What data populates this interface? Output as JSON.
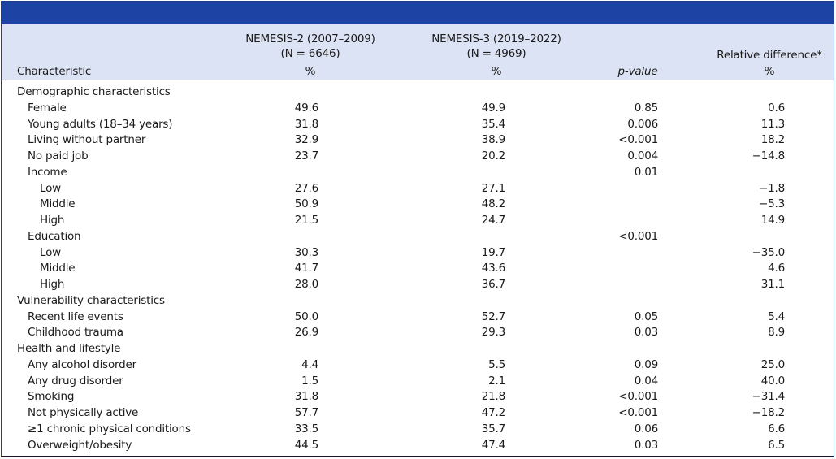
{
  "header": {
    "col_characteristic": "Characteristic",
    "col_n2_title": "NEMESIS-2 (2007–2009)",
    "col_n2_n": "(N = 6646)",
    "col_n2_unit": "%",
    "col_n3_title": "NEMESIS-3 (2019–2022)",
    "col_n3_n": "(N = 4969)",
    "col_n3_unit": "%",
    "col_p": "p-value",
    "col_rel": "Relative difference*",
    "col_rel_unit": "%"
  },
  "rows": [
    {
      "label": "Demographic characteristics",
      "indent": 0,
      "n2": "",
      "n3": "",
      "p": "",
      "rel": ""
    },
    {
      "label": "Female",
      "indent": 1,
      "n2": "49.6",
      "n3": "49.9",
      "p": "0.85",
      "rel": "0.6"
    },
    {
      "label": "Young adults (18–34 years)",
      "indent": 1,
      "n2": "31.8",
      "n3": "35.4",
      "p": "0.006",
      "rel": "11.3"
    },
    {
      "label": "Living without partner",
      "indent": 1,
      "n2": "32.9",
      "n3": "38.9",
      "p": "<0.001",
      "rel": "18.2"
    },
    {
      "label": "No paid job",
      "indent": 1,
      "n2": "23.7",
      "n3": "20.2",
      "p": "0.004",
      "rel": "−14.8"
    },
    {
      "label": "Income",
      "indent": 1,
      "n2": "",
      "n3": "",
      "p": "0.01",
      "rel": ""
    },
    {
      "label": "Low",
      "indent": 2,
      "n2": "27.6",
      "n3": "27.1",
      "p": "",
      "rel": "−1.8"
    },
    {
      "label": "Middle",
      "indent": 2,
      "n2": "50.9",
      "n3": "48.2",
      "p": "",
      "rel": "−5.3"
    },
    {
      "label": "High",
      "indent": 2,
      "n2": "21.5",
      "n3": "24.7",
      "p": "",
      "rel": "14.9"
    },
    {
      "label": "Education",
      "indent": 1,
      "n2": "",
      "n3": "",
      "p": "<0.001",
      "rel": ""
    },
    {
      "label": "Low",
      "indent": 2,
      "n2": "30.3",
      "n3": "19.7",
      "p": "",
      "rel": "−35.0"
    },
    {
      "label": "Middle",
      "indent": 2,
      "n2": "41.7",
      "n3": "43.6",
      "p": "",
      "rel": "4.6"
    },
    {
      "label": "High",
      "indent": 2,
      "n2": "28.0",
      "n3": "36.7",
      "p": "",
      "rel": "31.1"
    },
    {
      "label": "Vulnerability characteristics",
      "indent": 0,
      "n2": "",
      "n3": "",
      "p": "",
      "rel": ""
    },
    {
      "label": "Recent life events",
      "indent": 1,
      "n2": "50.0",
      "n3": "52.7",
      "p": "0.05",
      "rel": "5.4"
    },
    {
      "label": "Childhood trauma",
      "indent": 1,
      "n2": "26.9",
      "n3": "29.3",
      "p": "0.03",
      "rel": "8.9"
    },
    {
      "label": "Health and lifestyle",
      "indent": 0,
      "n2": "",
      "n3": "",
      "p": "",
      "rel": ""
    },
    {
      "label": "Any alcohol disorder",
      "indent": 1,
      "n2": "4.4",
      "n3": "5.5",
      "p": "0.09",
      "rel": "25.0"
    },
    {
      "label": "Any drug disorder",
      "indent": 1,
      "n2": "1.5",
      "n3": "2.1",
      "p": "0.04",
      "rel": "40.0"
    },
    {
      "label": "Smoking",
      "indent": 1,
      "n2": "31.8",
      "n3": "21.8",
      "p": "<0.001",
      "rel": "−31.4"
    },
    {
      "label": "Not physically active",
      "indent": 1,
      "n2": "57.7",
      "n3": "47.2",
      "p": "<0.001",
      "rel": "−18.2"
    },
    {
      "label": "≥1 chronic physical conditions",
      "indent": 1,
      "n2": "33.5",
      "n3": "35.7",
      "p": "0.06",
      "rel": "6.6"
    },
    {
      "label": "Overweight/obesity",
      "indent": 1,
      "n2": "44.5",
      "n3": "47.4",
      "p": "0.03",
      "rel": "6.5"
    }
  ]
}
